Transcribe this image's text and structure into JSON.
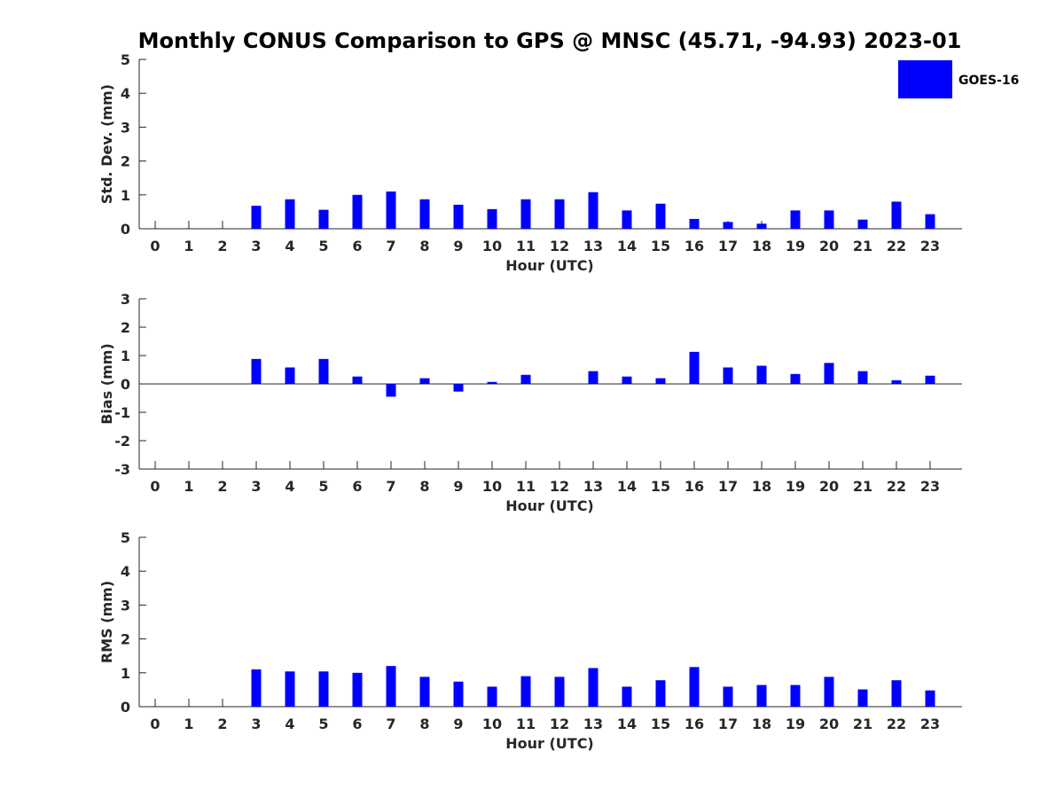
{
  "chart_data": {
    "title": "Monthly CONUS Comparison to GPS @ MNSC (45.71, -94.93) 2023-01",
    "legend": {
      "label": "GOES-16",
      "color": "#0000ff",
      "placement": "top-right"
    },
    "series_color": "#0000ff",
    "panels": [
      {
        "type": "bar",
        "ylabel": "Std. Dev. (mm)",
        "xlabel": "Hour (UTC)",
        "ylim": [
          0,
          5
        ],
        "yticks": [
          0,
          1,
          2,
          3,
          4,
          5
        ],
        "categories": [
          0,
          1,
          2,
          3,
          4,
          5,
          6,
          7,
          8,
          9,
          10,
          11,
          12,
          13,
          14,
          15,
          16,
          17,
          18,
          19,
          20,
          21,
          22,
          23
        ],
        "values": [
          null,
          null,
          null,
          0.68,
          0.87,
          0.56,
          1.0,
          1.1,
          0.87,
          0.71,
          0.58,
          0.87,
          0.87,
          1.08,
          0.54,
          0.74,
          0.29,
          0.2,
          0.15,
          0.54,
          0.54,
          0.27,
          0.8,
          0.43
        ]
      },
      {
        "type": "bar",
        "ylabel": "Bias (mm)",
        "xlabel": "Hour (UTC)",
        "ylim": [
          -3,
          3
        ],
        "yticks": [
          -3,
          -2,
          -1,
          0,
          1,
          2,
          3
        ],
        "categories": [
          0,
          1,
          2,
          3,
          4,
          5,
          6,
          7,
          8,
          9,
          10,
          11,
          12,
          13,
          14,
          15,
          16,
          17,
          18,
          19,
          20,
          21,
          22,
          23
        ],
        "values": [
          null,
          null,
          null,
          0.88,
          0.58,
          0.88,
          0.26,
          -0.45,
          0.2,
          -0.27,
          0.07,
          0.32,
          null,
          0.45,
          0.26,
          0.2,
          1.13,
          0.58,
          0.64,
          0.35,
          0.74,
          0.45,
          0.13,
          0.29
        ]
      },
      {
        "type": "bar",
        "ylabel": "RMS (mm)",
        "xlabel": "Hour (UTC)",
        "ylim": [
          0,
          5
        ],
        "yticks": [
          0,
          1,
          2,
          3,
          4,
          5
        ],
        "categories": [
          0,
          1,
          2,
          3,
          4,
          5,
          6,
          7,
          8,
          9,
          10,
          11,
          12,
          13,
          14,
          15,
          16,
          17,
          18,
          19,
          20,
          21,
          22,
          23
        ],
        "values": [
          null,
          null,
          null,
          1.1,
          1.04,
          1.04,
          1.0,
          1.2,
          0.88,
          0.74,
          0.59,
          0.9,
          0.88,
          1.14,
          0.59,
          0.78,
          1.17,
          0.59,
          0.64,
          0.64,
          0.88,
          0.51,
          0.78,
          0.48
        ]
      }
    ]
  }
}
